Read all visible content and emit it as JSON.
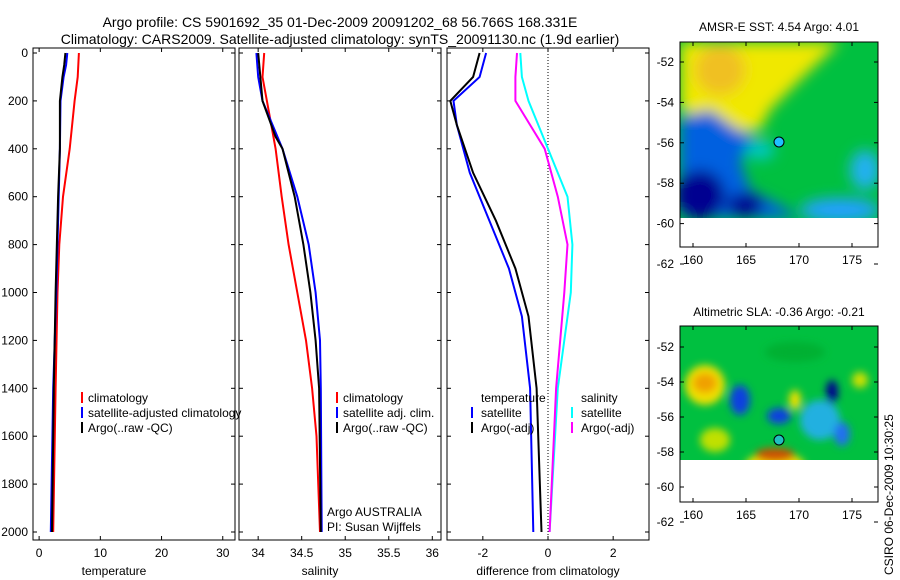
{
  "title_line1": "Argo profile: CS 5901692_35 01-Dec-2009 20091202_68 56.766S 168.331E",
  "title_line2": "Climatology: CARS2009. Satellite-adjusted climatology: synTS_20091130.nc (1.9d earlier)",
  "footer_stamp": "CSIRO 06-Dec-2009 10:30:25",
  "colors": {
    "climatology": "#ff0000",
    "satellite": "#0000ff",
    "argo": "#000000",
    "sal_satellite": "#00ffff",
    "sal_argo": "#ff00ff"
  },
  "chart_data": [
    {
      "type": "line",
      "xlabel": "temperature",
      "ylabel": "",
      "xlim": [
        -1,
        32
      ],
      "ylim": [
        2050,
        0
      ],
      "xticks": [
        "0",
        "10",
        "20",
        "30"
      ],
      "xtick_values": [
        0,
        10,
        20,
        30
      ],
      "yticks": [
        "0",
        "200",
        "400",
        "600",
        "800",
        "1000",
        "1200",
        "1400",
        "1600",
        "1800",
        "2000"
      ],
      "legend": [
        "climatology",
        "satellite-adjusted climatology",
        "Argo(..raw -QC)"
      ],
      "series": [
        {
          "name": "climatology",
          "color": "#ff0000",
          "depth": [
            0,
            100,
            200,
            400,
            600,
            800,
            1000,
            1400,
            2000
          ],
          "values": [
            6.5,
            6.3,
            5.8,
            5.0,
            3.9,
            3.3,
            3.0,
            2.7,
            2.3
          ]
        },
        {
          "name": "satellite-adjusted climatology",
          "color": "#0000ff",
          "depth": [
            0,
            50,
            100,
            200,
            400,
            600,
            1000,
            1400,
            2000
          ],
          "values": [
            4.6,
            4.4,
            4.0,
            3.5,
            3.4,
            3.2,
            2.8,
            2.3,
            1.9
          ]
        },
        {
          "name": "Argo(..raw -QC)",
          "color": "#000000",
          "depth": [
            0,
            50,
            100,
            200,
            400,
            600,
            1000,
            1400,
            2000
          ],
          "values": [
            4.3,
            4.1,
            3.8,
            3.4,
            3.4,
            3.1,
            2.7,
            2.4,
            2.1
          ]
        }
      ]
    },
    {
      "type": "line",
      "xlabel": "salinity",
      "ylabel": "",
      "xlim": [
        33.78,
        36.1
      ],
      "ylim": [
        2050,
        0
      ],
      "xticks": [
        "34",
        "34.5",
        "35",
        "35.5",
        "36"
      ],
      "xtick_values": [
        34,
        34.5,
        35,
        35.5,
        36
      ],
      "legend": [
        "climatology",
        "satellite adj. clim.",
        "Argo(..raw -QC)"
      ],
      "annotation": [
        "Argo AUSTRALIA",
        "PI: Susan Wijffels"
      ],
      "series": [
        {
          "name": "climatology",
          "color": "#ff0000",
          "depth": [
            0,
            100,
            200,
            400,
            600,
            800,
            1000,
            1200,
            1400,
            1600,
            2000
          ],
          "values": [
            34.07,
            34.05,
            34.1,
            34.2,
            34.27,
            34.35,
            34.45,
            34.55,
            34.62,
            34.67,
            34.71
          ]
        },
        {
          "name": "satellite adj. clim.",
          "color": "#0000ff",
          "depth": [
            0,
            100,
            200,
            400,
            600,
            800,
            1000,
            1200,
            1400,
            2000
          ],
          "values": [
            33.98,
            34.0,
            34.05,
            34.28,
            34.45,
            34.58,
            34.66,
            34.71,
            34.72,
            34.73
          ]
        },
        {
          "name": "Argo(..raw -QC)",
          "color": "#000000",
          "depth": [
            0,
            200,
            350,
            400,
            600,
            800,
            1000,
            1200,
            1400,
            2000
          ],
          "values": [
            34.0,
            34.05,
            34.2,
            34.28,
            34.42,
            34.52,
            34.6,
            34.66,
            34.7,
            34.72
          ]
        }
      ]
    },
    {
      "type": "line",
      "xlabel": "difference from climatology",
      "ylabel": "",
      "xlim": [
        -3.1,
        3.1
      ],
      "ylim": [
        2050,
        0
      ],
      "xticks": [
        "-2",
        "0",
        "2"
      ],
      "xtick_values": [
        -2,
        0,
        2
      ],
      "legend_left": {
        "title": "temperature",
        "items": [
          "satellite",
          "Argo(-adj)"
        ]
      },
      "legend_right": {
        "title": "salinity",
        "items": [
          "satellite",
          "Argo(-adj)"
        ]
      },
      "series": [
        {
          "name": "temperature satellite",
          "color": "#0000ff",
          "depth": [
            0,
            100,
            200,
            300,
            500,
            700,
            900,
            1100,
            1400,
            2000
          ],
          "values": [
            -1.9,
            -2.1,
            -2.9,
            -2.8,
            -2.4,
            -1.8,
            -1.2,
            -0.8,
            -0.55,
            -0.45
          ]
        },
        {
          "name": "temperature Argo(-adj)",
          "color": "#000000",
          "depth": [
            0,
            100,
            200,
            300,
            500,
            700,
            900,
            1100,
            1400,
            2000
          ],
          "values": [
            -2.1,
            -2.3,
            -3.0,
            -2.8,
            -2.3,
            -1.6,
            -1.0,
            -0.6,
            -0.35,
            -0.2
          ]
        },
        {
          "name": "salinity satellite",
          "color": "#00ffff",
          "depth": [
            0,
            100,
            200,
            400,
            600,
            800,
            1000,
            1200,
            1400,
            2000
          ],
          "values": [
            -0.85,
            -0.8,
            -0.6,
            0.0,
            0.6,
            0.75,
            0.7,
            0.5,
            0.3,
            0.05
          ]
        },
        {
          "name": "salinity Argo(-adj)",
          "color": "#ff00ff",
          "depth": [
            0,
            100,
            200,
            400,
            600,
            800,
            1000,
            1400,
            2000
          ],
          "values": [
            -0.95,
            -1.0,
            -1.0,
            -0.1,
            0.3,
            0.6,
            0.5,
            0.25,
            0.05
          ]
        }
      ]
    },
    {
      "type": "heatmap",
      "title": "AMSR-E SST: 4.54 Argo: 4.01",
      "xticks": [
        "160",
        "165",
        "170",
        "175"
      ],
      "yticks": [
        "-52",
        "-54",
        "-56",
        "-58",
        "-60",
        "-62"
      ],
      "marker": {
        "lon": 168.331,
        "lat": -56.766
      }
    },
    {
      "type": "heatmap",
      "title": "Altimetric SLA: -0.36 Argo: -0.21",
      "xticks": [
        "160",
        "165",
        "170",
        "175"
      ],
      "yticks": [
        "-52",
        "-54",
        "-56",
        "-58",
        "-60",
        "-62"
      ],
      "marker": {
        "lon": 168.331,
        "lat": -56.766
      }
    }
  ]
}
